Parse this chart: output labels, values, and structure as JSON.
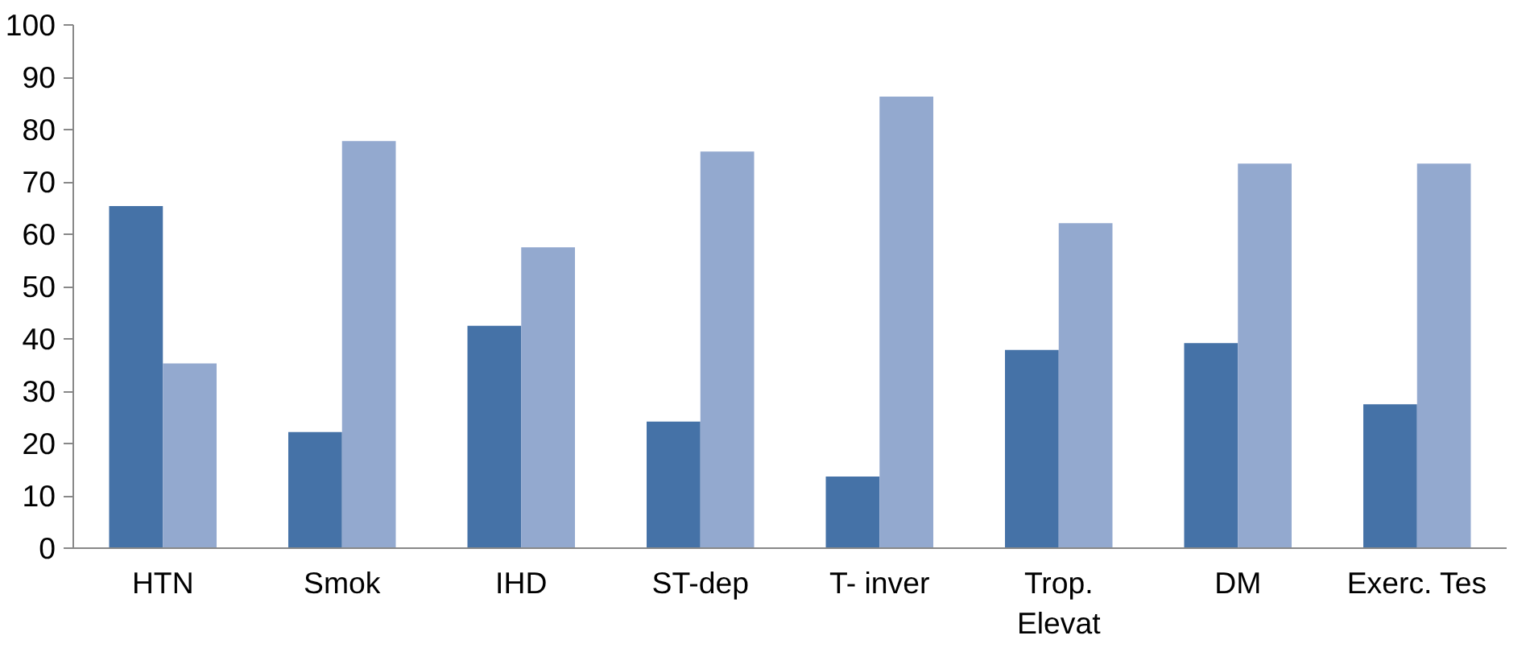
{
  "chart_data": {
    "type": "bar",
    "categories": [
      "HTN",
      "Smok",
      "IHD",
      "ST-dep",
      "T- inver",
      "Trop. Elevat",
      "DM",
      "Exerc. Tes"
    ],
    "series": [
      {
        "color": "#4572a7",
        "values": [
          65.4,
          22.2,
          42.5,
          24.2,
          13.7,
          37.9,
          39.2,
          27.5
        ]
      },
      {
        "color": "#93a9cf",
        "values": [
          35.3,
          77.8,
          57.5,
          75.8,
          86.3,
          62.1,
          73.5,
          73.5
        ]
      }
    ],
    "ylim": [
      0,
      100
    ],
    "yticks": [
      0,
      10,
      20,
      30,
      40,
      50,
      60,
      70,
      80,
      90,
      100
    ],
    "grid": false
  }
}
